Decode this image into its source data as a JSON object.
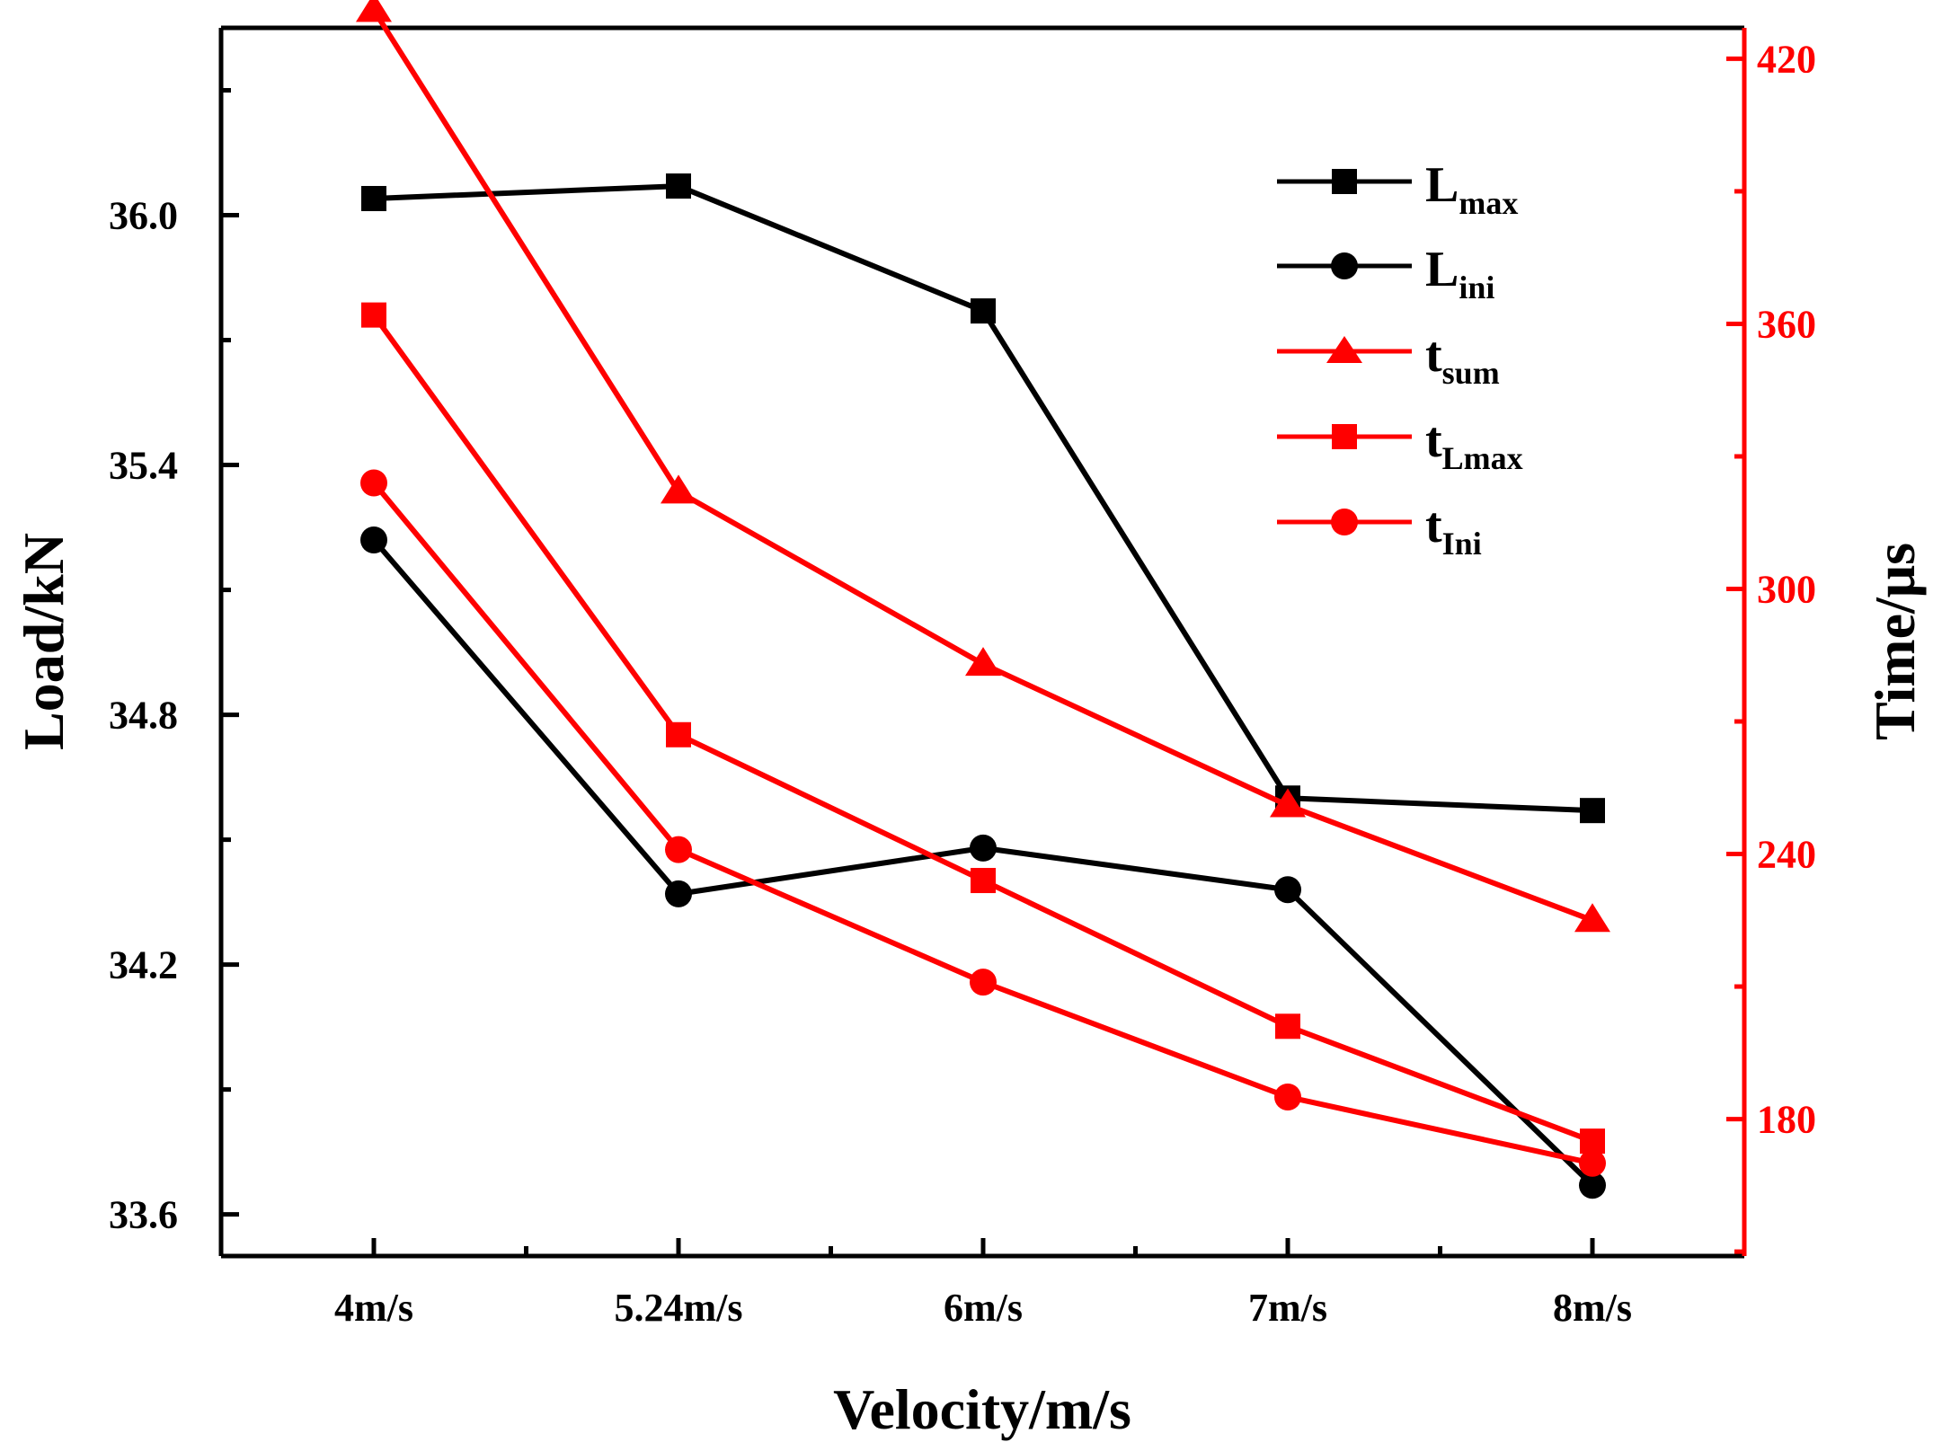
{
  "chart_data": {
    "type": "line",
    "categories": [
      "4m/s",
      "5.24m/s",
      "6m/s",
      "7m/s",
      "8m/s"
    ],
    "xlabel": "Velocity/m/s",
    "ylabel_left": "Load/kN",
    "ylabel_right": "Time/μs",
    "y_left_range": [
      33.5,
      36.45
    ],
    "y_left_ticks": [
      "33.6",
      "34.2",
      "34.8",
      "35.4",
      "36.0"
    ],
    "y_left_tick_values": [
      33.6,
      34.2,
      34.8,
      35.4,
      36.0
    ],
    "y_right_range": [
      149,
      427
    ],
    "y_right_ticks": [
      "180",
      "240",
      "300",
      "360",
      "420"
    ],
    "y_right_tick_values": [
      180,
      240,
      300,
      360,
      420
    ],
    "colors": {
      "black": "#000000",
      "red": "#ff0000"
    },
    "series": [
      {
        "id": "lmax",
        "name_main": "L",
        "name_sub": "max",
        "axis": "left",
        "color": "#000000",
        "marker": "square",
        "values": [
          36.04,
          36.07,
          35.77,
          34.6,
          34.57
        ]
      },
      {
        "id": "lini",
        "name_main": "L",
        "name_sub": "ini",
        "axis": "left",
        "color": "#000000",
        "marker": "circle",
        "values": [
          35.22,
          34.37,
          34.48,
          34.38,
          33.67
        ]
      },
      {
        "id": "tsum",
        "name_main": "t",
        "name_sub": "sum",
        "axis": "right",
        "color": "#ff0000",
        "marker": "triangle",
        "values": [
          431,
          322,
          283,
          251,
          225
        ]
      },
      {
        "id": "tlmax",
        "name_main": "t",
        "name_sub": "Lmax",
        "axis": "right",
        "color": "#ff0000",
        "marker": "square",
        "values": [
          362,
          267,
          234,
          201,
          175
        ]
      },
      {
        "id": "tini",
        "name_main": "t",
        "name_sub": "Ini",
        "axis": "right",
        "color": "#ff0000",
        "marker": "circle",
        "values": [
          324,
          241,
          211,
          185,
          170
        ]
      }
    ]
  }
}
